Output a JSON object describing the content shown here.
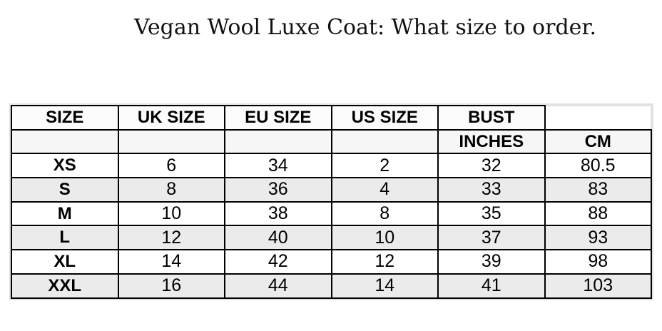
{
  "page": {
    "title": "Vegan Wool Luxe Coat: What size to order."
  },
  "size_chart": {
    "header_row_1": [
      "SIZE",
      "UK SIZE",
      "EU SIZE",
      "US SIZE",
      "BUST",
      ""
    ],
    "header_row_2": [
      "",
      "",
      "",
      "",
      "INCHES",
      "CM"
    ],
    "rows": [
      {
        "size": "XS",
        "uk": "6",
        "eu": "34",
        "us": "2",
        "bust_inches": "32",
        "bust_cm": "80.5"
      },
      {
        "size": "S",
        "uk": "8",
        "eu": "36",
        "us": "4",
        "bust_inches": "33",
        "bust_cm": "83"
      },
      {
        "size": "M",
        "uk": "10",
        "eu": "38",
        "us": "8",
        "bust_inches": "35",
        "bust_cm": "88"
      },
      {
        "size": "L",
        "uk": "12",
        "eu": "40",
        "us": "10",
        "bust_inches": "37",
        "bust_cm": "93"
      },
      {
        "size": "XL",
        "uk": "14",
        "eu": "42",
        "us": "12",
        "bust_inches": "39",
        "bust_cm": "98"
      },
      {
        "size": "XXL",
        "uk": "16",
        "eu": "44",
        "us": "14",
        "bust_inches": "41",
        "bust_cm": "103"
      }
    ],
    "colors": {
      "cell_border": "#000000",
      "outer_border": "#e2e2e2",
      "alt_row_bg": "#ebebeb",
      "header2_bg": "#f6f6f6",
      "text": "#000000"
    }
  }
}
